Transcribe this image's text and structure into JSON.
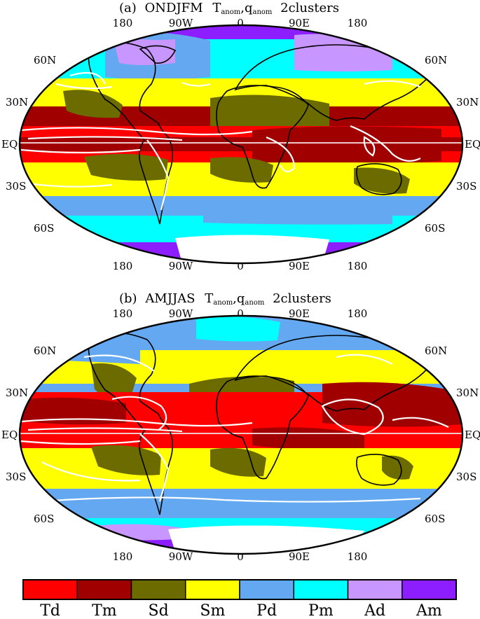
{
  "maps": [
    {
      "season": "ONDJFM",
      "title_prefix": "(a)",
      "title_vars": [
        "T",
        "anom",
        ",q",
        "anom"
      ],
      "title_suffix": "2clusters",
      "lon_labels": [
        "180",
        "90W",
        "0",
        "90E",
        "180"
      ],
      "lat_labels_left": [
        "60N",
        "30N",
        "EQ",
        "30S",
        "60S"
      ],
      "lat_labels_right": [
        "60N",
        "30N",
        "EQ",
        "30S",
        "60S"
      ]
    },
    {
      "season": "AMJJAS",
      "title_prefix": "(b)",
      "title_vars": [
        "T",
        "anom",
        ",q",
        "anom"
      ],
      "title_suffix": "2clusters",
      "lon_labels": [
        "180",
        "90W",
        "0",
        "90E",
        "180"
      ],
      "lat_labels_left": [
        "60N",
        "30N",
        "EQ",
        "30S",
        "60S"
      ],
      "lat_labels_right": [
        "60N",
        "30N",
        "EQ",
        "30S",
        "60S"
      ]
    }
  ],
  "legend": [
    {
      "label": "Td",
      "color": "#ff0000"
    },
    {
      "label": "Tm",
      "color": "#a00000"
    },
    {
      "label": "Sd",
      "color": "#6b6b00"
    },
    {
      "label": "Sm",
      "color": "#ffff00"
    },
    {
      "label": "Pd",
      "color": "#63a8f0"
    },
    {
      "label": "Pm",
      "color": "#00ffff"
    },
    {
      "label": "Ad",
      "color": "#c896ff"
    },
    {
      "label": "Am",
      "color": "#8c1eff"
    }
  ]
}
